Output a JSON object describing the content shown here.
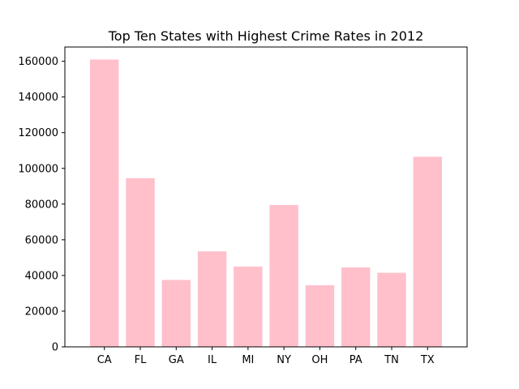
{
  "chart_data": {
    "type": "bar",
    "title": "Top Ten States with Highest Crime Rates in 2012",
    "xlabel": "",
    "ylabel": "",
    "categories": [
      "CA",
      "FL",
      "GA",
      "IL",
      "MI",
      "NY",
      "OH",
      "PA",
      "TN",
      "TX"
    ],
    "values": [
      161000,
      94500,
      37500,
      53500,
      45000,
      79500,
      34500,
      44500,
      41500,
      106500
    ],
    "ylim": [
      0,
      168000
    ],
    "yticks": [
      0,
      20000,
      40000,
      60000,
      80000,
      100000,
      120000,
      140000,
      160000
    ],
    "grid": false,
    "legend": "none",
    "bar_color": "#ffc0cb"
  }
}
